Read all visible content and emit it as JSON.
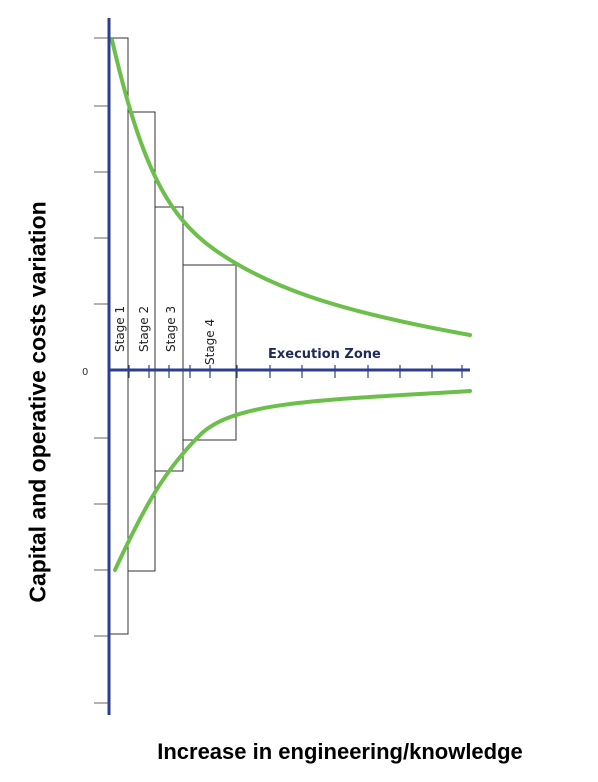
{
  "labels": {
    "y_axis": "Capital and operative costs variation",
    "x_axis": "Increase in engineering/knowledge",
    "zero": "0",
    "execution_zone": "Execution Zone"
  },
  "stages": [
    {
      "label": "Stage 1"
    },
    {
      "label": "Stage 2"
    },
    {
      "label": "Stage 3"
    },
    {
      "label": "Stage 4"
    }
  ],
  "colors": {
    "axis": "#2b3f8f",
    "curve": "#6cbf4a",
    "box": "#333333",
    "tick": "#666666"
  }
}
